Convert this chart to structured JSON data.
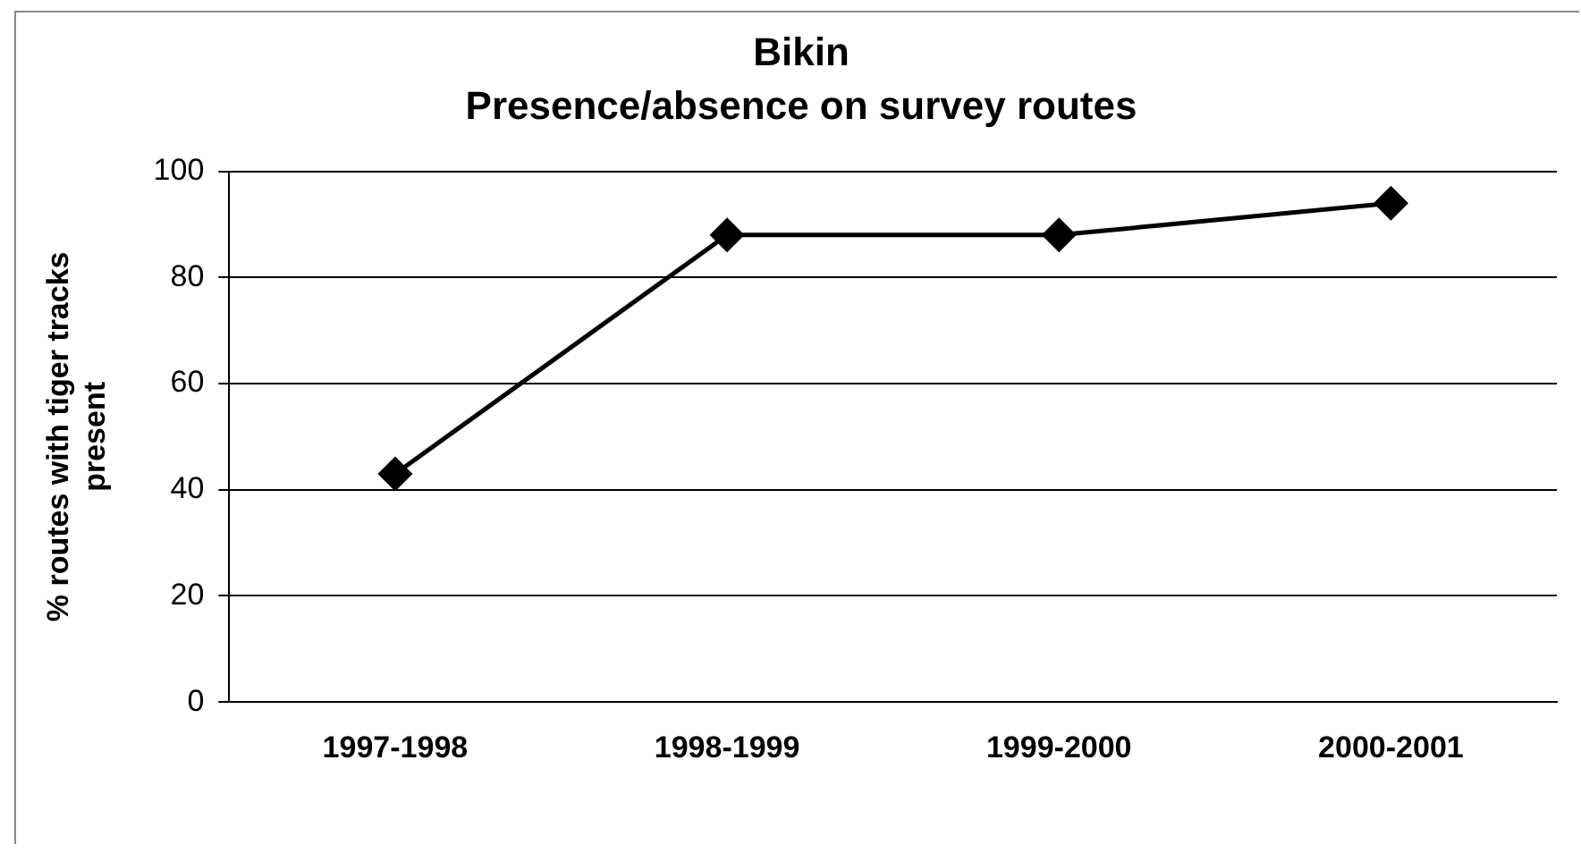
{
  "chart_data": {
    "type": "line",
    "title": "Bikin",
    "subtitle": "Presence/absence on survey routes",
    "ylabel": "% routes with tiger tracks\npresent",
    "categories": [
      "1997-1998",
      "1998-1999",
      "1999-2000",
      "2000-2001"
    ],
    "series": [
      {
        "color": "#000000",
        "values": [
          43,
          88,
          88,
          94
        ]
      }
    ],
    "ylim": [
      0,
      100
    ],
    "yticks": [
      0,
      20,
      40,
      60,
      80,
      100
    ],
    "grid": "y",
    "legend": false,
    "marker": "diamond",
    "line_style": "solid"
  }
}
